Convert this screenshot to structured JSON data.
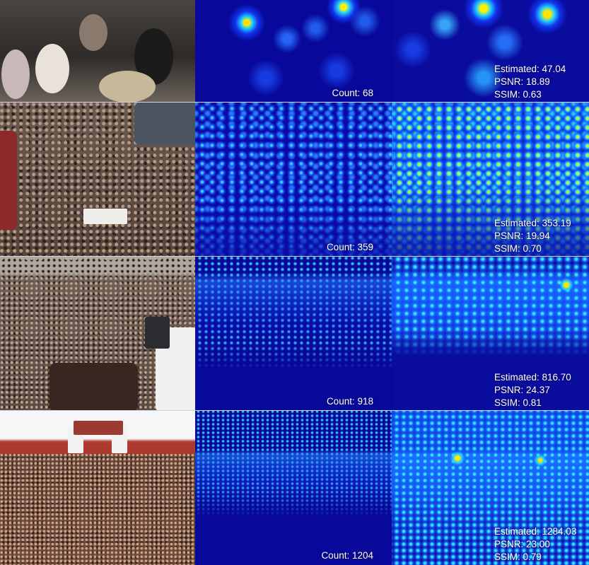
{
  "rows": [
    {
      "ground_truth": "Count: 68",
      "estimated": "Estimated: 47.04",
      "psnr": "PSNR: 18.89",
      "ssim": "SSIM: 0.63"
    },
    {
      "ground_truth": "Count: 359",
      "estimated": "Estimated: 353.19",
      "psnr": "PSNR: 19.94",
      "ssim": "SSIM: 0.70"
    },
    {
      "ground_truth": "Count: 918",
      "estimated": "Estimated: 816.70",
      "psnr": "PSNR: 24.37",
      "ssim": "SSIM: 0.81"
    },
    {
      "ground_truth": "Count: 1204",
      "estimated": "Estimated: 1284.03",
      "psnr": "PSNR: 23.00",
      "ssim": "SSIM: 0.79"
    }
  ],
  "colors": {
    "map_background": "#0a0c9e",
    "hot_spot": "#ffe600",
    "warm_spot": "#22d3ff",
    "label_text": "#ffffff"
  }
}
